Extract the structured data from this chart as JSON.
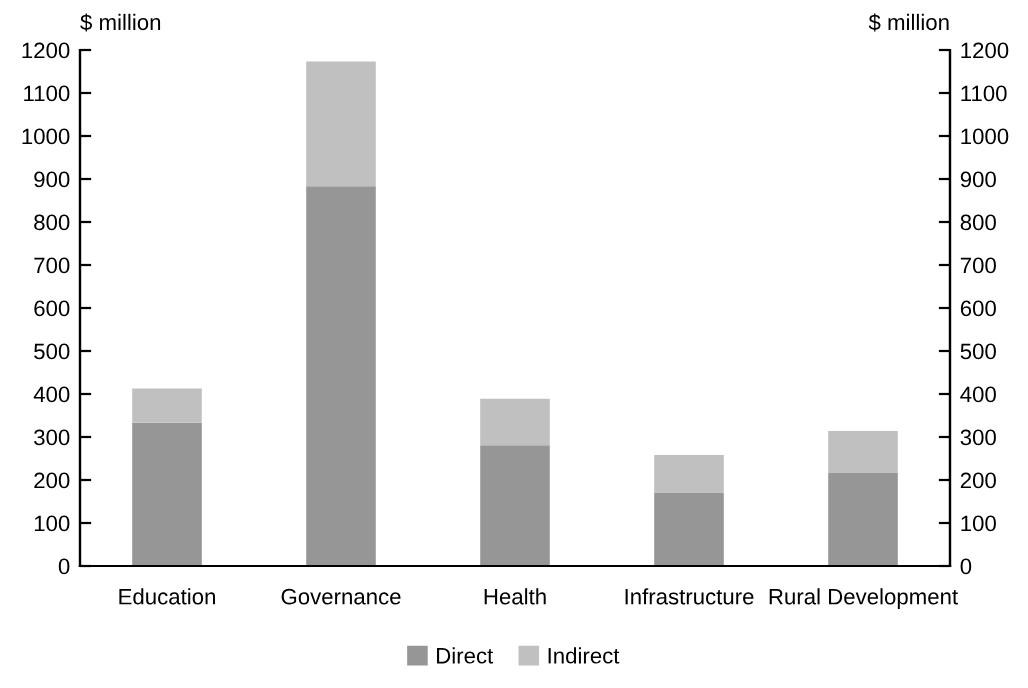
{
  "chart_data": {
    "type": "bar",
    "stacked": true,
    "ylabel": "$ million",
    "y2label": "$ million",
    "categories": [
      "Education",
      "Governance",
      "Health",
      "Infrastructure",
      "Rural Development"
    ],
    "series": [
      {
        "name": "Direct",
        "color": "#969696",
        "values": [
          333,
          883,
          281,
          170,
          216
        ]
      },
      {
        "name": "Indirect",
        "color": "#c0c0c0",
        "values": [
          80,
          290,
          108,
          88,
          98
        ]
      }
    ],
    "ylim": [
      0,
      1200
    ],
    "yticks": [
      0,
      100,
      200,
      300,
      400,
      500,
      600,
      700,
      800,
      900,
      1000,
      1100,
      1200
    ],
    "y2lim": [
      0,
      1200
    ],
    "y2ticks": [
      0,
      100,
      200,
      300,
      400,
      500,
      600,
      700,
      800,
      900,
      1000,
      1100,
      1200
    ],
    "grid": false,
    "legend": "bottom"
  }
}
